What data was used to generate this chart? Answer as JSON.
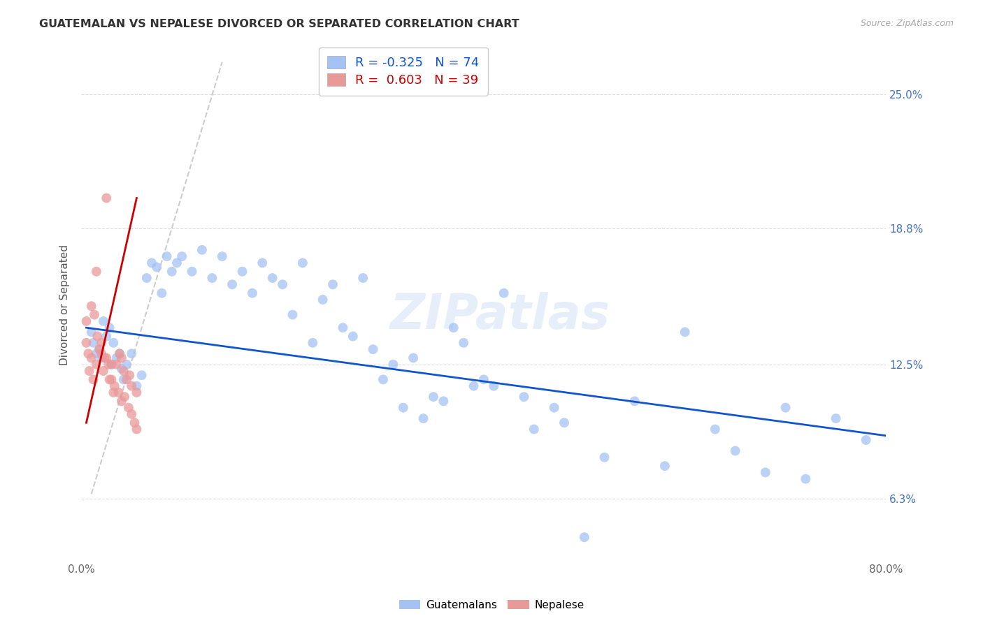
{
  "title": "GUATEMALAN VS NEPALESE DIVORCED OR SEPARATED CORRELATION CHART",
  "source": "Source: ZipAtlas.com",
  "ylabel": "Divorced or Separated",
  "ytick_labels": [
    "6.3%",
    "12.5%",
    "18.8%",
    "25.0%"
  ],
  "ytick_values": [
    6.3,
    12.5,
    18.8,
    25.0
  ],
  "xmin": 0.0,
  "xmax": 80.0,
  "ymin": 3.5,
  "ymax": 27.0,
  "legend_R_blue": "-0.325",
  "legend_N_blue": "74",
  "legend_R_pink": "0.603",
  "legend_N_pink": "39",
  "blue_color": "#a4c2f4",
  "pink_color": "#ea9999",
  "trend_blue_color": "#1155cc",
  "trend_pink_color": "#cc0000",
  "trend_gray_color": "#cccccc",
  "watermark": "ZIPatlas",
  "blue_trend_x0": 0.5,
  "blue_trend_y0": 14.2,
  "blue_trend_x1": 80.0,
  "blue_trend_y1": 9.2,
  "pink_trend_x0": 0.5,
  "pink_trend_y0": 9.8,
  "pink_trend_x1": 5.5,
  "pink_trend_y1": 20.2,
  "gray_diag_x0": 1.0,
  "gray_diag_y0": 6.5,
  "gray_diag_x1": 14.0,
  "gray_diag_y1": 26.5,
  "guatemalan_x": [
    1.0,
    1.2,
    1.5,
    1.8,
    2.0,
    2.2,
    2.5,
    2.8,
    3.0,
    3.2,
    3.5,
    3.8,
    4.0,
    4.2,
    4.5,
    5.0,
    5.5,
    6.0,
    6.5,
    7.0,
    7.5,
    8.0,
    8.5,
    9.0,
    9.5,
    10.0,
    11.0,
    12.0,
    13.0,
    14.0,
    15.0,
    16.0,
    17.0,
    18.0,
    19.0,
    20.0,
    21.0,
    22.0,
    23.0,
    24.0,
    25.0,
    26.0,
    27.0,
    28.0,
    29.0,
    30.0,
    31.0,
    32.0,
    33.0,
    34.0,
    35.0,
    36.0,
    37.0,
    38.0,
    39.0,
    40.0,
    41.0,
    42.0,
    44.0,
    45.0,
    47.0,
    48.0,
    50.0,
    52.0,
    55.0,
    58.0,
    60.0,
    63.0,
    65.0,
    68.0,
    70.0,
    72.0,
    75.0,
    78.0
  ],
  "guatemalan_y": [
    14.0,
    13.5,
    13.0,
    13.2,
    12.8,
    14.5,
    13.8,
    14.2,
    12.5,
    13.5,
    12.8,
    13.0,
    12.3,
    11.8,
    12.5,
    13.0,
    11.5,
    12.0,
    16.5,
    17.2,
    17.0,
    15.8,
    17.5,
    16.8,
    17.2,
    17.5,
    16.8,
    17.8,
    16.5,
    17.5,
    16.2,
    16.8,
    15.8,
    17.2,
    16.5,
    16.2,
    14.8,
    17.2,
    13.5,
    15.5,
    16.2,
    14.2,
    13.8,
    16.5,
    13.2,
    11.8,
    12.5,
    10.5,
    12.8,
    10.0,
    11.0,
    10.8,
    14.2,
    13.5,
    11.5,
    11.8,
    11.5,
    15.8,
    11.0,
    9.5,
    10.5,
    9.8,
    4.5,
    8.2,
    10.8,
    7.8,
    14.0,
    9.5,
    8.5,
    7.5,
    10.5,
    7.2,
    10.0,
    9.0
  ],
  "nepalese_x": [
    0.5,
    0.8,
    1.0,
    1.2,
    1.5,
    1.8,
    2.0,
    2.2,
    2.5,
    2.8,
    3.0,
    3.2,
    3.5,
    3.8,
    4.0,
    4.2,
    4.5,
    5.0,
    5.5,
    4.8,
    0.5,
    0.7,
    1.0,
    1.3,
    1.6,
    2.0,
    2.3,
    2.7,
    3.0,
    3.3,
    3.7,
    4.0,
    4.3,
    4.7,
    5.0,
    5.3,
    5.5,
    1.5,
    2.5
  ],
  "nepalese_y": [
    13.5,
    12.2,
    12.8,
    11.8,
    12.5,
    13.2,
    13.0,
    12.2,
    12.8,
    11.8,
    12.5,
    11.2,
    12.5,
    13.0,
    12.8,
    12.2,
    11.8,
    11.5,
    11.2,
    12.0,
    14.5,
    13.0,
    15.2,
    14.8,
    13.8,
    13.5,
    12.8,
    12.5,
    11.8,
    11.5,
    11.2,
    10.8,
    11.0,
    10.5,
    10.2,
    9.8,
    9.5,
    16.8,
    20.2
  ]
}
